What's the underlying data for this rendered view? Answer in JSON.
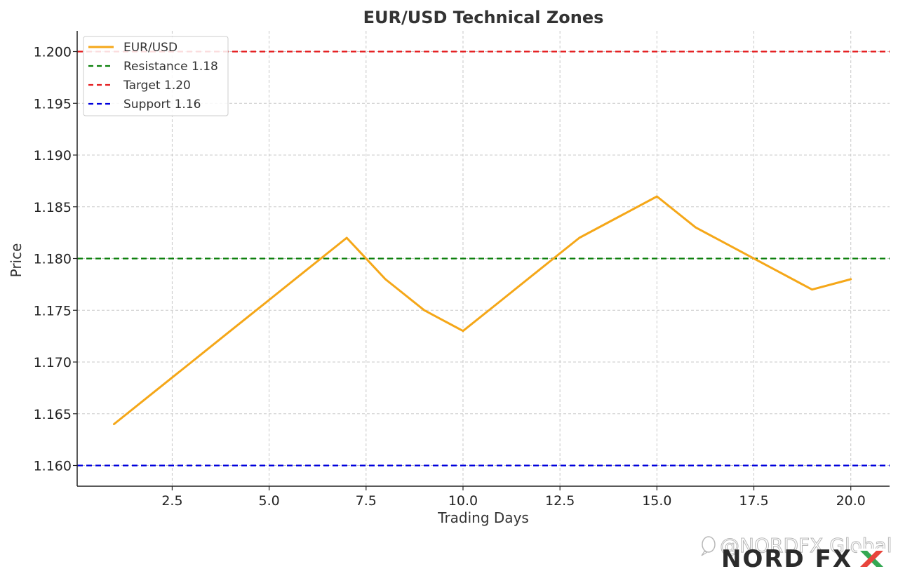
{
  "chart_data": {
    "type": "line",
    "title": "EUR/USD Technical Zones",
    "xlabel": "Trading Days",
    "ylabel": "Price",
    "xlim": [
      0.05,
      21.0
    ],
    "ylim": [
      1.158,
      1.202
    ],
    "x_ticks": [
      2.5,
      5.0,
      7.5,
      10.0,
      12.5,
      15.0,
      17.5,
      20.0
    ],
    "x_tick_labels": [
      "2.5",
      "5.0",
      "7.5",
      "10.0",
      "12.5",
      "15.0",
      "17.5",
      "20.0"
    ],
    "y_ticks": [
      1.16,
      1.165,
      1.17,
      1.175,
      1.18,
      1.185,
      1.19,
      1.195,
      1.2
    ],
    "y_tick_labels": [
      "1.160",
      "1.165",
      "1.170",
      "1.175",
      "1.180",
      "1.185",
      "1.190",
      "1.195",
      "1.200"
    ],
    "grid": true,
    "legend_position": "top-left",
    "series": [
      {
        "name": "EUR/USD",
        "color": "#f5a718",
        "x": [
          1,
          2,
          3,
          4,
          5,
          6,
          7,
          8,
          9,
          10,
          11,
          12,
          13,
          14,
          15,
          16,
          17,
          18,
          19,
          20
        ],
        "values": [
          1.164,
          1.167,
          1.17,
          1.173,
          1.176,
          1.179,
          1.182,
          1.178,
          1.175,
          1.173,
          1.176,
          1.179,
          1.182,
          1.184,
          1.186,
          1.183,
          1.181,
          1.179,
          1.177,
          1.178
        ]
      }
    ],
    "reference_lines": [
      {
        "name": "Resistance 1.18",
        "value": 1.18,
        "color": "#0a7f0a",
        "style": "dashed"
      },
      {
        "name": "Target 1.20",
        "value": 1.2,
        "color": "#e41a1c",
        "style": "dashed"
      },
      {
        "name": "Support 1.16",
        "value": 1.16,
        "color": "#0000dd",
        "style": "dashed"
      }
    ]
  },
  "watermark": {
    "text": "@NORDFX Global",
    "logo": "NORD FX",
    "icon": "chat-bubble-icon"
  }
}
